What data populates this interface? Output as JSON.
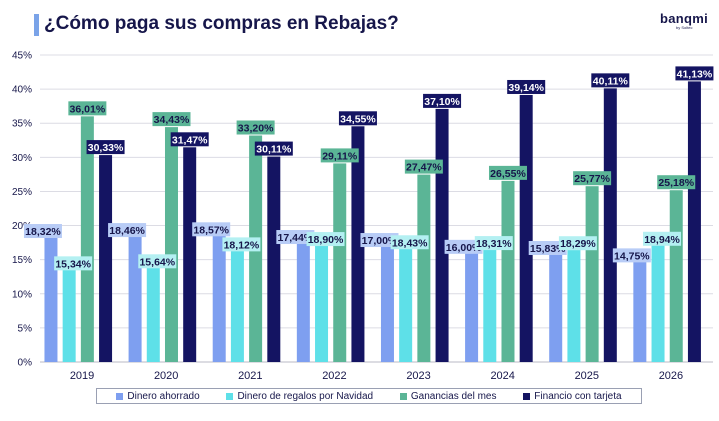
{
  "header": {
    "title": "¿Cómo paga sus compras en Rebajas?"
  },
  "brand": {
    "name": "banqmi",
    "tagline": "by Soltec"
  },
  "chart_data": {
    "type": "bar",
    "categories": [
      "2019",
      "2020",
      "2021",
      "2022",
      "2023",
      "2024",
      "2025",
      "2026"
    ],
    "series": [
      {
        "name": "Dinero ahorrado",
        "color": "#7e9ff0",
        "label_bg": "#b8ccf6",
        "values": [
          18.32,
          18.46,
          18.57,
          17.44,
          17.0,
          16.0,
          15.83,
          14.75
        ],
        "labels": [
          "18,32%",
          "18,46%",
          "18,57%",
          "17,44%",
          "17,00%",
          "16,00%",
          "15,83%",
          "14,75%"
        ]
      },
      {
        "name": "Dinero de regalos por Navidad",
        "color": "#5ee0e8",
        "label_bg": "#b4f0f2",
        "values": [
          15.34,
          15.64,
          18.12,
          18.9,
          18.43,
          18.31,
          18.29,
          18.94
        ],
        "labels": [
          "15,34%",
          "15,64%",
          "18,12%",
          "18,90%",
          "18,43%",
          "18,31%",
          "18,29%",
          "18,94%"
        ]
      },
      {
        "name": "Ganancias del mes",
        "color": "#5bb596",
        "label_bg": "#5bb596",
        "values": [
          36.01,
          34.43,
          33.2,
          29.11,
          27.47,
          26.55,
          25.77,
          25.18
        ],
        "labels": [
          "36,01%",
          "34,43%",
          "33,20%",
          "29,11%",
          "27,47%",
          "26,55%",
          "25,77%",
          "25,18%"
        ]
      },
      {
        "name": "Financio con tarjeta",
        "color": "#141462",
        "label_bg": "#141462",
        "values": [
          30.33,
          31.47,
          30.11,
          34.55,
          37.1,
          39.14,
          40.11,
          41.13
        ],
        "labels": [
          "30,33%",
          "31,47%",
          "30,11%",
          "34,55%",
          "37,10%",
          "39,14%",
          "40,11%",
          "41,13%"
        ]
      }
    ],
    "ylim": [
      0,
      45
    ],
    "yticks": [
      0,
      5,
      10,
      15,
      20,
      25,
      30,
      35,
      40,
      45
    ],
    "ytick_labels": [
      "0%",
      "5%",
      "10%",
      "15%",
      "20%",
      "25%",
      "30%",
      "35%",
      "40%",
      "45%"
    ],
    "grid": true,
    "legend_position": "bottom"
  }
}
